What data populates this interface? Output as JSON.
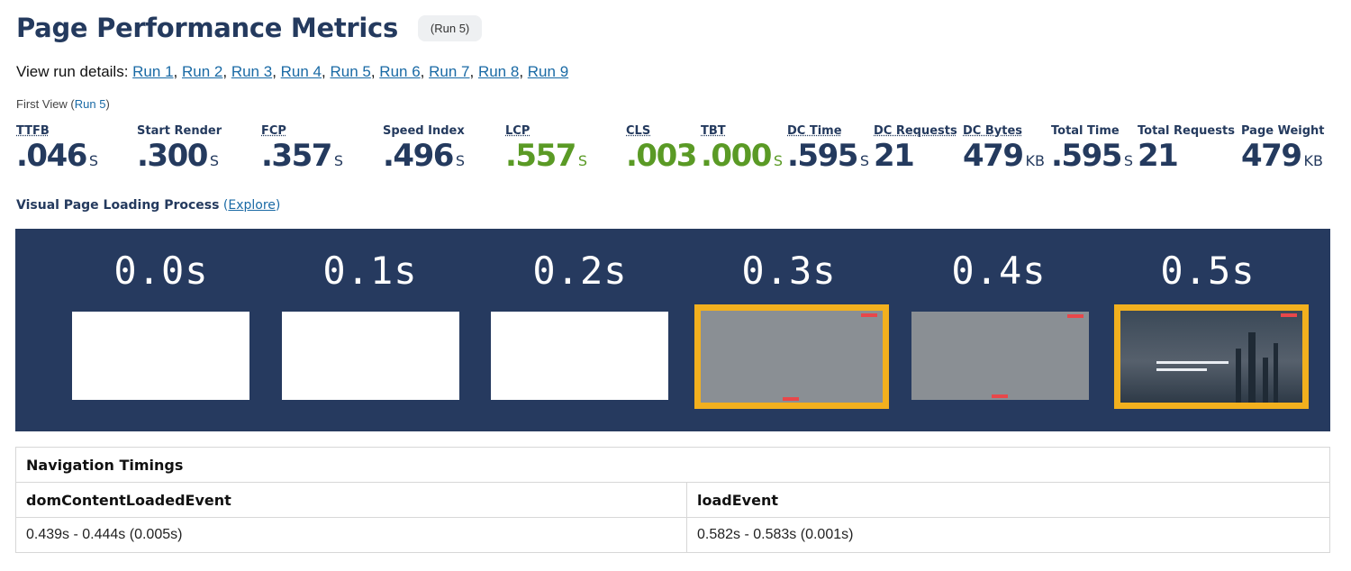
{
  "header": {
    "title": "Page Performance Metrics",
    "run_badge": "(Run 5)"
  },
  "run_links": {
    "prefix": "View run details: ",
    "runs": [
      "Run 1",
      "Run 2",
      "Run 3",
      "Run 4",
      "Run 5",
      "Run 6",
      "Run 7",
      "Run 8",
      "Run 9"
    ]
  },
  "first_view": {
    "label": "First View (",
    "run": "Run 5",
    "suffix": ")"
  },
  "metrics": [
    {
      "label": "TTFB",
      "value": ".046",
      "unit": "S"
    },
    {
      "label": "Start Render",
      "value": ".300",
      "unit": "S"
    },
    {
      "label": "FCP",
      "value": ".357",
      "unit": "S"
    },
    {
      "label": "Speed Index",
      "value": ".496",
      "unit": "S"
    },
    {
      "label": "LCP",
      "value": ".557",
      "unit": "S"
    },
    {
      "label": "CLS",
      "value": ".003",
      "unit": ""
    },
    {
      "label": "TBT",
      "value": ".000",
      "unit": "S"
    },
    {
      "label": "DC Time",
      "value": ".595",
      "unit": "S"
    },
    {
      "label": "DC Requests",
      "value": "21",
      "unit": ""
    },
    {
      "label": "DC Bytes",
      "value": "479",
      "unit": "KB"
    },
    {
      "label": "Total Time",
      "value": ".595",
      "unit": "S"
    },
    {
      "label": "Total Requests",
      "value": "21",
      "unit": ""
    },
    {
      "label": "Page Weight",
      "value": "479",
      "unit": "KB"
    }
  ],
  "colors": {
    "navy": "#243a5e",
    "good": "#5a9a25",
    "filmstrip_bg": "#263a5f",
    "frame_highlight": "#f2b01e",
    "link": "#1a6aa5"
  },
  "visual": {
    "title": "Visual Page Loading Process",
    "explore_open": " (",
    "explore": "Explore",
    "explore_close": ")",
    "frames": [
      "0.0s",
      "0.1s",
      "0.2s",
      "0.3s",
      "0.4s",
      "0.5s"
    ]
  },
  "nav_timings": {
    "title": "Navigation Timings",
    "columns": [
      "domContentLoadedEvent",
      "loadEvent"
    ],
    "values": [
      "0.439s - 0.444s (0.005s)",
      "0.582s - 0.583s (0.001s)"
    ]
  }
}
